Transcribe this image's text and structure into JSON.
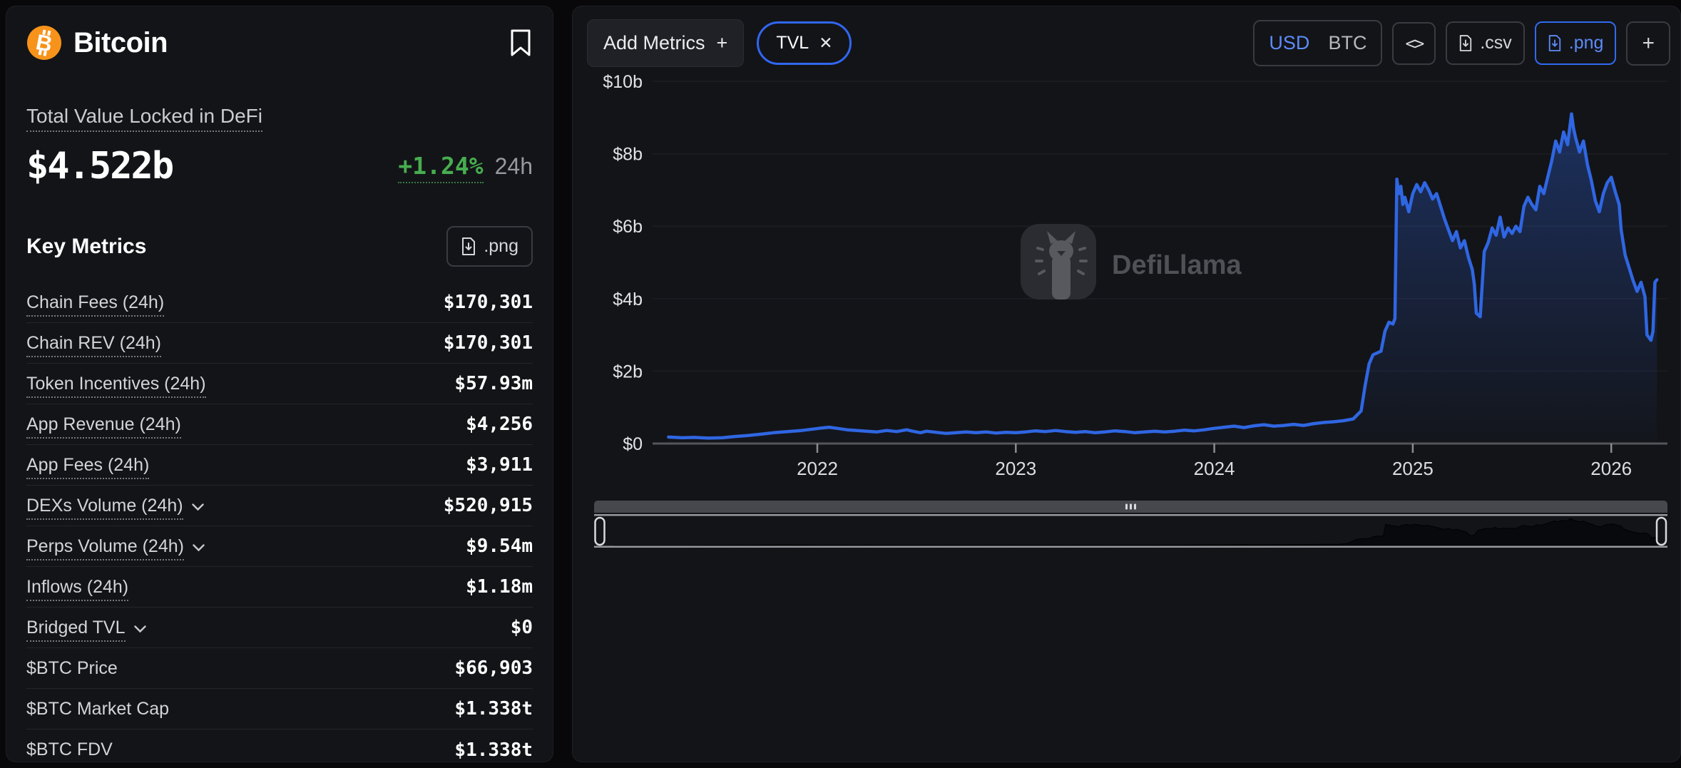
{
  "header": {
    "coin_name": "Bitcoin"
  },
  "tvl": {
    "label": "Total Value Locked in DeFi",
    "value": "$4.522b",
    "change": "+1.24%",
    "change_period": "24h"
  },
  "key_metrics": {
    "title": "Key Metrics",
    "download_png_label": ".png",
    "rows": [
      {
        "label": "Chain Fees (24h)",
        "value": "$170,301",
        "chevron": false,
        "underline": true
      },
      {
        "label": "Chain REV (24h)",
        "value": "$170,301",
        "chevron": false,
        "underline": true
      },
      {
        "label": "Token Incentives (24h)",
        "value": "$57.93m",
        "chevron": false,
        "underline": true
      },
      {
        "label": "App Revenue (24h)",
        "value": "$4,256",
        "chevron": false,
        "underline": true
      },
      {
        "label": "App Fees (24h)",
        "value": "$3,911",
        "chevron": false,
        "underline": true
      },
      {
        "label": "DEXs Volume (24h)",
        "value": "$520,915",
        "chevron": true,
        "underline": true
      },
      {
        "label": "Perps Volume (24h)",
        "value": "$9.54m",
        "chevron": true,
        "underline": true
      },
      {
        "label": "Inflows (24h)",
        "value": "$1.18m",
        "chevron": false,
        "underline": true
      },
      {
        "label": "Bridged TVL",
        "value": "$0",
        "chevron": true,
        "underline": true
      },
      {
        "label": "$BTC Price",
        "value": "$66,903",
        "chevron": false,
        "underline": false
      },
      {
        "label": "$BTC Market Cap",
        "value": "$1.338t",
        "chevron": false,
        "underline": false
      },
      {
        "label": "$BTC FDV",
        "value": "$1.338t",
        "chevron": false,
        "underline": false
      }
    ]
  },
  "toolbar": {
    "add_metrics_label": "Add Metrics",
    "add_metrics_plus": "+",
    "metric_chips": [
      {
        "label": "TVL",
        "close": "✕"
      }
    ],
    "currency_options": [
      "USD",
      "BTC"
    ],
    "currency_selected": "USD",
    "embed_label": "<>",
    "csv_label": ".csv",
    "png_label": ".png",
    "add_chart_label": "+"
  },
  "watermark": {
    "text": "DefiLlama"
  },
  "colors": {
    "accent_blue": "#3067f0",
    "accent_blue_text": "#5d8bf8",
    "positive_green": "#47ad4f",
    "bitcoin_orange": "#f7931a",
    "card_bg": "#131418",
    "line_blue": "#2f66e2"
  },
  "chart_data": {
    "type": "area",
    "title": "Bitcoin Total Value Locked in DeFi",
    "unit": "USD billions",
    "x_domain": [
      2021.17,
      2026.24
    ],
    "y_domain": [
      0,
      10
    ],
    "x_ticks": [
      {
        "v": 2022,
        "label": "2022"
      },
      {
        "v": 2023,
        "label": "2023"
      },
      {
        "v": 2024,
        "label": "2024"
      },
      {
        "v": 2025,
        "label": "2025"
      },
      {
        "v": 2026,
        "label": "2026"
      }
    ],
    "y_ticks": [
      {
        "v": 0,
        "label": "$0"
      },
      {
        "v": 2,
        "label": "$2b"
      },
      {
        "v": 4,
        "label": "$4b"
      },
      {
        "v": 6,
        "label": "$6b"
      },
      {
        "v": 8,
        "label": "$8b"
      },
      {
        "v": 10,
        "label": "$10b"
      }
    ],
    "grid": true,
    "legend": "none",
    "line_color": "#2f66e2",
    "area_top_color": "rgba(47,102,226,0.35)",
    "area_bottom_color": "rgba(47,102,226,0.02)",
    "series": [
      {
        "name": "TVL",
        "points": [
          [
            2021.25,
            0.18
          ],
          [
            2021.32,
            0.16
          ],
          [
            2021.38,
            0.17
          ],
          [
            2021.45,
            0.15
          ],
          [
            2021.52,
            0.16
          ],
          [
            2021.58,
            0.19
          ],
          [
            2021.65,
            0.22
          ],
          [
            2021.72,
            0.26
          ],
          [
            2021.78,
            0.3
          ],
          [
            2021.85,
            0.33
          ],
          [
            2021.92,
            0.36
          ],
          [
            2021.98,
            0.4
          ],
          [
            2022.02,
            0.43
          ],
          [
            2022.06,
            0.45
          ],
          [
            2022.1,
            0.42
          ],
          [
            2022.15,
            0.38
          ],
          [
            2022.2,
            0.36
          ],
          [
            2022.25,
            0.34
          ],
          [
            2022.3,
            0.32
          ],
          [
            2022.35,
            0.36
          ],
          [
            2022.4,
            0.33
          ],
          [
            2022.45,
            0.38
          ],
          [
            2022.48,
            0.34
          ],
          [
            2022.52,
            0.3
          ],
          [
            2022.55,
            0.34
          ],
          [
            2022.6,
            0.31
          ],
          [
            2022.65,
            0.28
          ],
          [
            2022.7,
            0.3
          ],
          [
            2022.75,
            0.32
          ],
          [
            2022.8,
            0.3
          ],
          [
            2022.85,
            0.32
          ],
          [
            2022.9,
            0.29
          ],
          [
            2022.95,
            0.31
          ],
          [
            2023.0,
            0.3
          ],
          [
            2023.05,
            0.32
          ],
          [
            2023.1,
            0.35
          ],
          [
            2023.15,
            0.33
          ],
          [
            2023.2,
            0.36
          ],
          [
            2023.25,
            0.33
          ],
          [
            2023.3,
            0.31
          ],
          [
            2023.35,
            0.33
          ],
          [
            2023.4,
            0.3
          ],
          [
            2023.45,
            0.32
          ],
          [
            2023.5,
            0.35
          ],
          [
            2023.55,
            0.33
          ],
          [
            2023.6,
            0.3
          ],
          [
            2023.65,
            0.32
          ],
          [
            2023.7,
            0.34
          ],
          [
            2023.75,
            0.32
          ],
          [
            2023.8,
            0.34
          ],
          [
            2023.85,
            0.37
          ],
          [
            2023.9,
            0.35
          ],
          [
            2023.95,
            0.38
          ],
          [
            2024.0,
            0.42
          ],
          [
            2024.05,
            0.45
          ],
          [
            2024.1,
            0.48
          ],
          [
            2024.15,
            0.44
          ],
          [
            2024.2,
            0.49
          ],
          [
            2024.25,
            0.52
          ],
          [
            2024.3,
            0.48
          ],
          [
            2024.35,
            0.5
          ],
          [
            2024.4,
            0.53
          ],
          [
            2024.45,
            0.5
          ],
          [
            2024.5,
            0.55
          ],
          [
            2024.55,
            0.58
          ],
          [
            2024.6,
            0.6
          ],
          [
            2024.65,
            0.63
          ],
          [
            2024.7,
            0.68
          ],
          [
            2024.74,
            0.9
          ],
          [
            2024.76,
            1.6
          ],
          [
            2024.78,
            2.2
          ],
          [
            2024.8,
            2.45
          ],
          [
            2024.82,
            2.5
          ],
          [
            2024.84,
            2.55
          ],
          [
            2024.86,
            3.1
          ],
          [
            2024.88,
            3.35
          ],
          [
            2024.9,
            3.3
          ],
          [
            2024.91,
            3.45
          ],
          [
            2024.92,
            7.3
          ],
          [
            2024.93,
            6.9
          ],
          [
            2024.94,
            7.1
          ],
          [
            2024.95,
            6.6
          ],
          [
            2024.96,
            6.8
          ],
          [
            2024.98,
            6.4
          ],
          [
            2025.0,
            6.9
          ],
          [
            2025.02,
            7.15
          ],
          [
            2025.04,
            6.95
          ],
          [
            2025.06,
            7.2
          ],
          [
            2025.08,
            7.0
          ],
          [
            2025.1,
            6.75
          ],
          [
            2025.12,
            6.9
          ],
          [
            2025.14,
            6.55
          ],
          [
            2025.16,
            6.2
          ],
          [
            2025.18,
            5.9
          ],
          [
            2025.2,
            5.6
          ],
          [
            2025.22,
            5.85
          ],
          [
            2025.24,
            5.4
          ],
          [
            2025.26,
            5.6
          ],
          [
            2025.28,
            5.15
          ],
          [
            2025.3,
            4.8
          ],
          [
            2025.31,
            4.4
          ],
          [
            2025.32,
            3.6
          ],
          [
            2025.34,
            3.5
          ],
          [
            2025.36,
            5.3
          ],
          [
            2025.38,
            5.55
          ],
          [
            2025.4,
            5.95
          ],
          [
            2025.42,
            5.75
          ],
          [
            2025.44,
            6.25
          ],
          [
            2025.46,
            5.7
          ],
          [
            2025.48,
            5.95
          ],
          [
            2025.5,
            5.8
          ],
          [
            2025.52,
            6.0
          ],
          [
            2025.54,
            5.85
          ],
          [
            2025.56,
            6.55
          ],
          [
            2025.58,
            6.8
          ],
          [
            2025.6,
            6.6
          ],
          [
            2025.62,
            6.45
          ],
          [
            2025.64,
            7.1
          ],
          [
            2025.66,
            6.9
          ],
          [
            2025.68,
            7.35
          ],
          [
            2025.7,
            7.8
          ],
          [
            2025.72,
            8.35
          ],
          [
            2025.74,
            8.05
          ],
          [
            2025.76,
            8.6
          ],
          [
            2025.78,
            8.25
          ],
          [
            2025.8,
            9.1
          ],
          [
            2025.81,
            8.7
          ],
          [
            2025.82,
            8.45
          ],
          [
            2025.84,
            8.05
          ],
          [
            2025.86,
            8.35
          ],
          [
            2025.88,
            7.7
          ],
          [
            2025.9,
            7.25
          ],
          [
            2025.92,
            6.7
          ],
          [
            2025.94,
            6.4
          ],
          [
            2025.96,
            6.9
          ],
          [
            2025.98,
            7.2
          ],
          [
            2026.0,
            7.35
          ],
          [
            2026.02,
            6.95
          ],
          [
            2026.04,
            6.6
          ],
          [
            2026.05,
            5.9
          ],
          [
            2026.07,
            5.2
          ],
          [
            2026.09,
            4.85
          ],
          [
            2026.11,
            4.5
          ],
          [
            2026.13,
            4.2
          ],
          [
            2026.15,
            4.45
          ],
          [
            2026.17,
            4.05
          ],
          [
            2026.18,
            3.0
          ],
          [
            2026.2,
            2.85
          ],
          [
            2026.21,
            3.1
          ],
          [
            2026.22,
            4.45
          ],
          [
            2026.23,
            4.52
          ]
        ]
      }
    ]
  }
}
